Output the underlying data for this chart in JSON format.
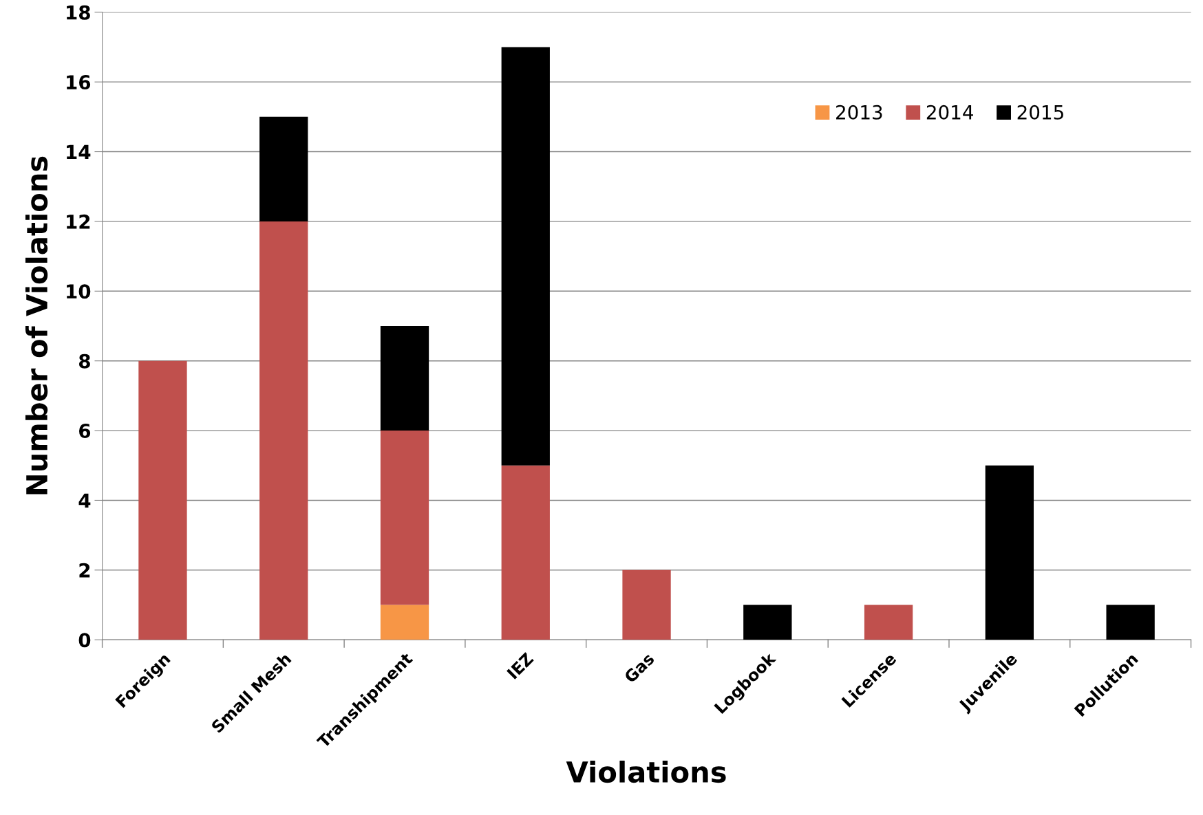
{
  "chart_data": {
    "type": "bar",
    "stacked": true,
    "xlabel": "Violations",
    "ylabel": "Number of Violations",
    "categories": [
      "Foreign",
      "Small Mesh",
      "Transhipment",
      "IEZ",
      "Gas",
      "Logbook",
      "License",
      "Juvenile",
      "Pollution"
    ],
    "series": [
      {
        "name": "2013",
        "color": "#f79646",
        "values": [
          null,
          null,
          1,
          null,
          null,
          null,
          null,
          null,
          null
        ]
      },
      {
        "name": "2014",
        "color": "#c0504d",
        "values": [
          8,
          12,
          5,
          5,
          2,
          null,
          1,
          null,
          null
        ]
      },
      {
        "name": "2015",
        "color": "#000000",
        "values": [
          null,
          3,
          3,
          12,
          null,
          1,
          null,
          5,
          1
        ]
      }
    ],
    "ylim": [
      0,
      18
    ],
    "yticks": [
      0,
      2,
      4,
      6,
      8,
      10,
      12,
      14,
      16,
      18
    ],
    "grid": "y",
    "legend": "top right"
  }
}
